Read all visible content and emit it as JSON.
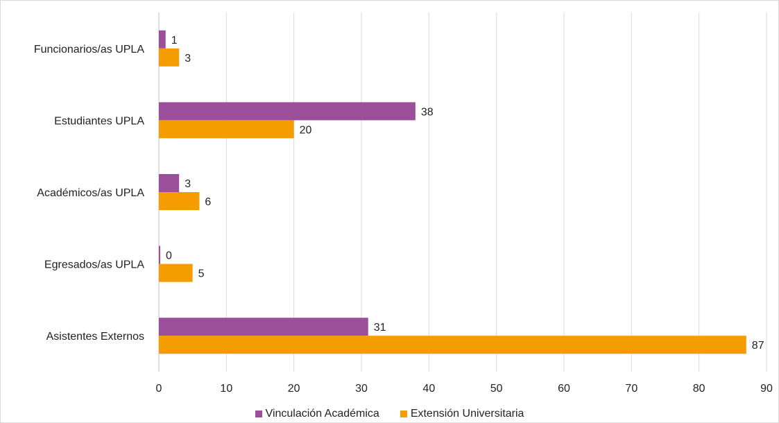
{
  "chart_data": {
    "type": "bar",
    "orientation": "horizontal",
    "categories": [
      "Funcionarios/as UPLA",
      "Estudiantes UPLA",
      "Académicos/as UPLA",
      "Egresados/as UPLA",
      "Asistentes Externos"
    ],
    "series": [
      {
        "name": "Vinculación Académica",
        "color": "#9b4f9b",
        "values": [
          1,
          38,
          3,
          0,
          31
        ]
      },
      {
        "name": "Extensión Universitaria",
        "color": "#f59c00",
        "values": [
          3,
          20,
          6,
          5,
          87
        ]
      }
    ],
    "xlim": [
      0,
      90
    ],
    "xticks": [
      "0",
      "10",
      "20",
      "30",
      "40",
      "50",
      "60",
      "70",
      "80",
      "90"
    ],
    "grid": true,
    "legend_position": "bottom"
  }
}
